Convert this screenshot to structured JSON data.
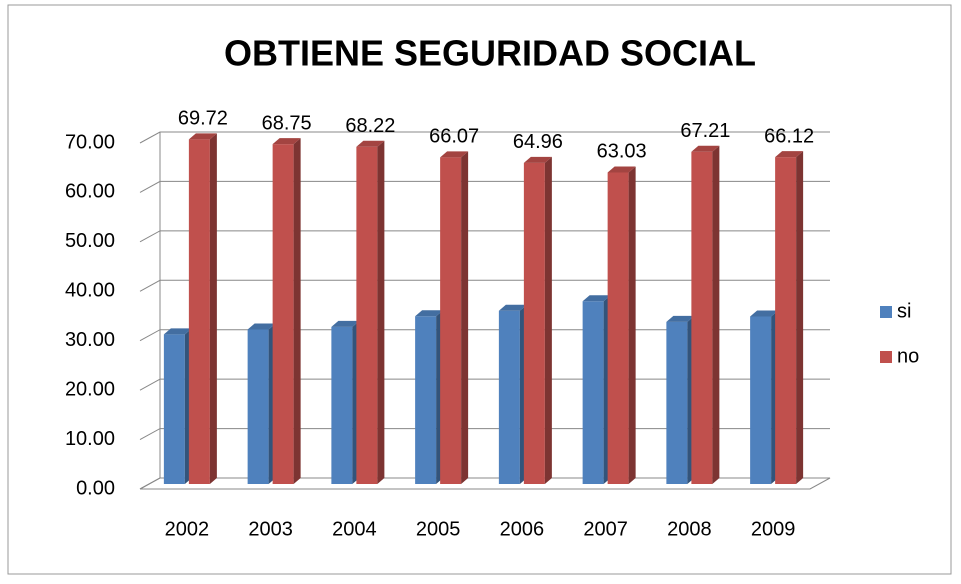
{
  "chart_data": {
    "type": "bar3d",
    "title": "OBTIENE SEGURIDAD SOCIAL",
    "categories": [
      "2002",
      "2003",
      "2004",
      "2005",
      "2006",
      "2007",
      "2008",
      "2009"
    ],
    "series": [
      {
        "name": "si",
        "color": "#4f81bd",
        "values": [
          30.28,
          31.25,
          31.78,
          33.93,
          35.04,
          36.97,
          32.79,
          33.88
        ]
      },
      {
        "name": "no",
        "color": "#c0504d",
        "values": [
          69.72,
          68.75,
          68.22,
          66.07,
          64.96,
          63.03,
          67.21,
          66.12
        ]
      }
    ],
    "data_labels_series": [
      "no"
    ],
    "ylim": [
      0,
      70
    ],
    "yticks": [
      {
        "value": 0,
        "label": "0.00"
      },
      {
        "value": 10,
        "label": "10.00"
      },
      {
        "value": 20,
        "label": "20.00"
      },
      {
        "value": 30,
        "label": "30.00"
      },
      {
        "value": 40,
        "label": "40.00"
      },
      {
        "value": 50,
        "label": "50.00"
      },
      {
        "value": 60,
        "label": "60.00"
      },
      {
        "value": 70,
        "label": "70.00"
      }
    ],
    "grid": true,
    "legend": "right"
  }
}
